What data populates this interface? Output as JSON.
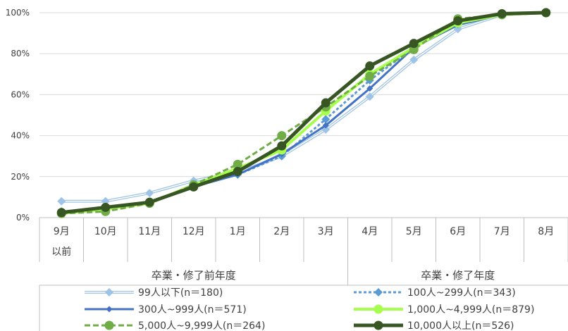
{
  "chart_data": {
    "type": "line",
    "categories": [
      {
        "line1": "9月",
        "line2": "以前"
      },
      {
        "line1": "10月"
      },
      {
        "line1": "11月"
      },
      {
        "line1": "12月"
      },
      {
        "line1": "1月"
      },
      {
        "line1": "2月"
      },
      {
        "line1": "3月"
      },
      {
        "line1": "4月"
      },
      {
        "line1": "5月"
      },
      {
        "line1": "6月"
      },
      {
        "line1": "7月"
      },
      {
        "line1": "8月"
      }
    ],
    "groups": [
      {
        "label": "卒業・修了前年度",
        "from": 0,
        "to": 7
      },
      {
        "label": "卒業・修了年度",
        "from": 7,
        "to": 12
      }
    ],
    "y_ticks": [
      {
        "value": 0,
        "label": "0%"
      },
      {
        "value": 20,
        "label": "20%"
      },
      {
        "value": 40,
        "label": "40%"
      },
      {
        "value": 60,
        "label": "60%"
      },
      {
        "value": 80,
        "label": "80%"
      },
      {
        "value": 100,
        "label": "100%"
      }
    ],
    "ylim": [
      0,
      100
    ],
    "grid": true,
    "legend_position": "bottom",
    "series": [
      {
        "name": "99人以下(n＝180)",
        "color": "#9dc3e6",
        "style": "double",
        "marker": "diamond",
        "values": [
          8,
          8,
          12,
          18,
          22,
          30,
          43,
          59,
          77,
          92,
          99,
          100
        ]
      },
      {
        "name": "100人~299人(n＝343)",
        "color": "#5b9bd5",
        "style": "dash",
        "marker": "diamond",
        "values": [
          3,
          4,
          7,
          16,
          21,
          30,
          48,
          67,
          83,
          95,
          99,
          100
        ]
      },
      {
        "name": "300人~999人(n＝571)",
        "color": "#4472c4",
        "style": "solid",
        "marker": "diamond-small",
        "values": [
          2,
          4,
          7,
          15,
          21,
          31,
          45,
          63,
          83,
          94,
          99,
          100
        ]
      },
      {
        "name": "1,000人~4,999人(n＝879)",
        "color": "#a6ff4d",
        "style": "solid-outline",
        "marker": "circle",
        "values": [
          2,
          4,
          7,
          16,
          24,
          33,
          52,
          70,
          83,
          95,
          99,
          100
        ]
      },
      {
        "name": "5,000人~9,999人(n＝264)",
        "color": "#70ad47",
        "style": "dash",
        "marker": "circle",
        "values": [
          2,
          3,
          7,
          16,
          26,
          40,
          54,
          69,
          82,
          97,
          99,
          100
        ]
      },
      {
        "name": "10,000人以上(n＝526)",
        "color": "#375623",
        "style": "solid-thick",
        "marker": "circle",
        "values": [
          2.5,
          5,
          7.5,
          15,
          22.5,
          35,
          56,
          74,
          85,
          96,
          99.5,
          100
        ]
      }
    ]
  }
}
